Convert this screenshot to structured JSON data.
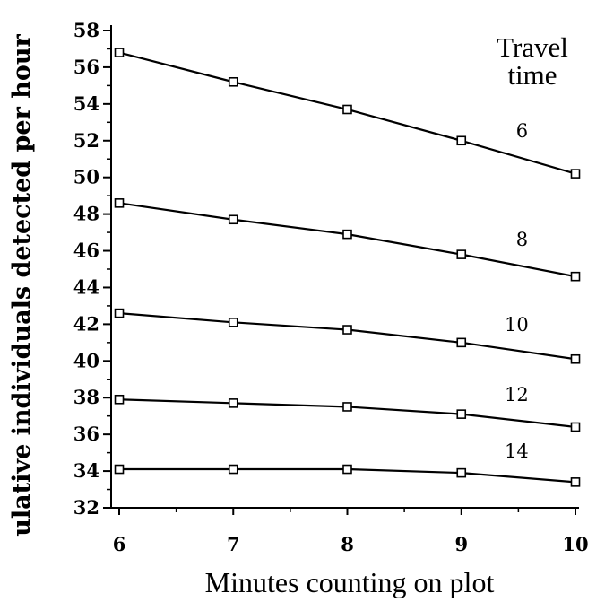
{
  "chart_data": {
    "type": "line",
    "title": "",
    "xlabel": "Minutes counting on plot",
    "ylabel": "ulative individuals detected per hour",
    "legend_title": [
      "Travel",
      "time"
    ],
    "x": [
      6,
      7,
      8,
      9,
      10
    ],
    "xlim": [
      6,
      10
    ],
    "ylim": [
      32,
      58
    ],
    "yticks": [
      32,
      34,
      36,
      38,
      40,
      42,
      44,
      46,
      48,
      50,
      52,
      54,
      56,
      58
    ],
    "xticks": [
      6,
      7,
      8,
      9,
      10
    ],
    "grid": false,
    "series": [
      {
        "name": "6",
        "values": [
          56.8,
          55.2,
          53.7,
          52.0,
          50.2
        ]
      },
      {
        "name": "8",
        "values": [
          48.6,
          47.7,
          46.9,
          45.8,
          44.6
        ]
      },
      {
        "name": "10",
        "values": [
          42.6,
          42.1,
          41.7,
          41.0,
          40.1
        ]
      },
      {
        "name": "12",
        "values": [
          37.9,
          37.7,
          37.5,
          37.1,
          36.4
        ]
      },
      {
        "name": "14",
        "values": [
          34.1,
          34.1,
          34.1,
          33.9,
          33.4
        ]
      }
    ]
  }
}
